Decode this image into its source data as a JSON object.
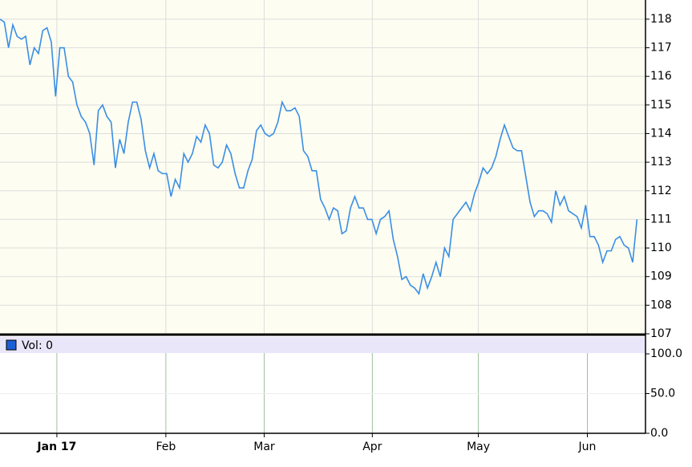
{
  "chart_data": [
    {
      "type": "line",
      "series": [
        {
          "color": "#3a8ee6",
          "values": [
            118.0,
            117.9,
            117.0,
            117.8,
            117.4,
            117.3,
            117.4,
            116.4,
            117.0,
            116.8,
            117.6,
            117.7,
            117.2,
            115.3,
            117.0,
            117.0,
            116.0,
            115.8,
            115.0,
            114.6,
            114.4,
            114.0,
            112.9,
            114.8,
            115.0,
            114.6,
            114.4,
            112.8,
            113.8,
            113.3,
            114.4,
            115.1,
            115.1,
            114.5,
            113.4,
            112.8,
            113.3,
            112.7,
            112.6,
            112.6,
            111.8,
            112.4,
            112.1,
            113.3,
            113.0,
            113.3,
            113.9,
            113.7,
            114.3,
            114.0,
            112.9,
            112.8,
            113.0,
            113.6,
            113.3,
            112.6,
            112.1,
            112.1,
            112.7,
            113.1,
            114.1,
            114.3,
            114.0,
            113.9,
            114.0,
            114.4,
            115.1,
            114.8,
            114.8,
            114.9,
            114.6,
            113.4,
            113.2,
            112.7,
            112.7,
            111.7,
            111.4,
            111.0,
            111.4,
            111.3,
            110.5,
            110.6,
            111.4,
            111.8,
            111.4,
            111.4,
            111.0,
            111.0,
            110.5,
            111.0,
            111.1,
            111.3,
            110.3,
            109.7,
            108.9,
            109.0,
            108.7,
            108.6,
            108.4,
            109.1,
            108.6,
            109.0,
            109.5,
            109.0,
            110.0,
            109.7,
            111.0,
            111.2,
            111.4,
            111.6,
            111.3,
            111.9,
            112.3,
            112.8,
            112.6,
            112.8,
            113.2,
            113.8,
            114.3,
            113.9,
            113.5,
            113.4,
            113.4,
            112.5,
            111.6,
            111.1,
            111.3,
            111.3,
            111.2,
            110.9,
            112.0,
            111.5,
            111.8,
            111.3,
            111.2,
            111.1,
            110.7,
            111.5,
            110.4,
            110.4,
            110.1,
            109.5,
            109.9,
            109.9,
            110.3,
            110.4,
            110.1,
            110.0,
            109.5,
            111.0
          ]
        }
      ],
      "xlim": [
        0,
        151
      ],
      "xticks": [
        {
          "value": 13.3,
          "label": "Jan 17"
        },
        {
          "value": 38.8,
          "label": "Feb"
        },
        {
          "value": 61.8,
          "label": "Mar"
        },
        {
          "value": 87.1,
          "label": "Apr"
        },
        {
          "value": 111.9,
          "label": "May"
        },
        {
          "value": 137.4,
          "label": "Jun"
        }
      ],
      "ylim": [
        107,
        118.67
      ],
      "yticks": [
        107,
        108,
        109,
        110,
        111,
        112,
        113,
        114,
        115,
        116,
        117,
        118
      ],
      "grid": true
    },
    {
      "type": "bar",
      "series": [
        {
          "name": "Vol: 0",
          "color": "#1a5fd6",
          "values": []
        }
      ],
      "ylim": [
        0,
        100
      ],
      "yticks": [
        {
          "value": 0,
          "label": "0.0"
        },
        {
          "value": 50,
          "label": "50.0"
        },
        {
          "value": 100,
          "label": "100.0"
        }
      ],
      "grid": true
    }
  ]
}
